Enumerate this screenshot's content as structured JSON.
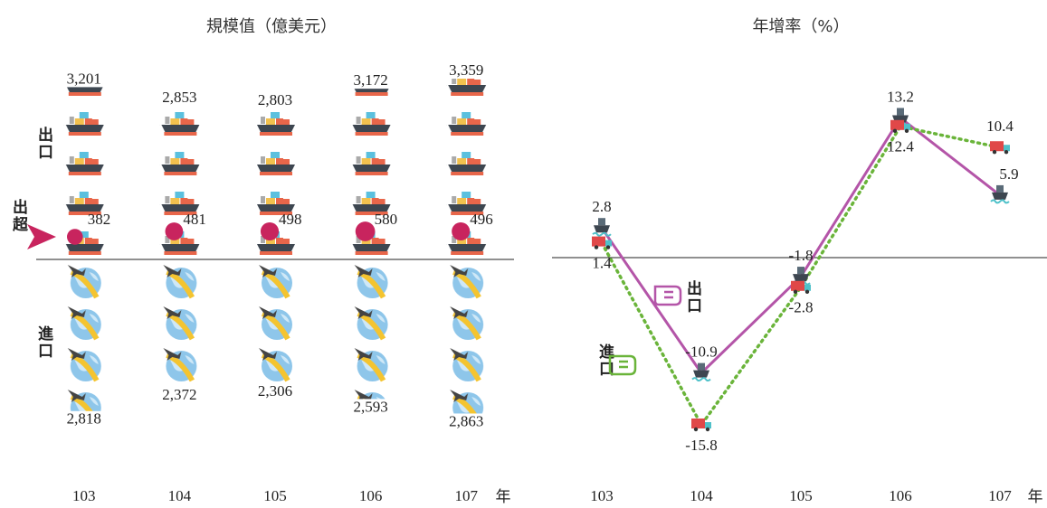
{
  "chart_data": [
    {
      "type": "pictogram",
      "title": "規模值（億美元）",
      "categories": [
        "103",
        "104",
        "105",
        "106",
        "107"
      ],
      "x_unit": "年",
      "series": [
        {
          "name": "出口",
          "color": "#2e9e72",
          "values": [
            3201,
            2853,
            2803,
            3172,
            3359
          ],
          "value_labels": [
            "3,201",
            "2,853",
            "2,803",
            "3,172",
            "3,359"
          ]
        },
        {
          "name": "進口",
          "color": "#3f62a8",
          "values": [
            2818,
            2372,
            2306,
            2593,
            2863
          ],
          "value_labels": [
            "2,818",
            "2,372",
            "2,306",
            "2,593",
            "2,863"
          ]
        },
        {
          "name": "出超",
          "color": "#c8245e",
          "values": [
            382,
            481,
            498,
            580,
            496
          ]
        }
      ]
    },
    {
      "type": "line",
      "title": "年增率（%）",
      "categories": [
        "103",
        "104",
        "105",
        "106",
        "107"
      ],
      "x_unit": "年",
      "series": [
        {
          "name": "出口",
          "color": "#b455a8",
          "values": [
            2.8,
            -10.9,
            -1.8,
            13.2,
            5.9
          ]
        },
        {
          "name": "進口",
          "color": "#6ab43a",
          "dashed": true,
          "values": [
            1.4,
            -15.8,
            -2.8,
            12.4,
            10.4
          ]
        }
      ]
    }
  ]
}
